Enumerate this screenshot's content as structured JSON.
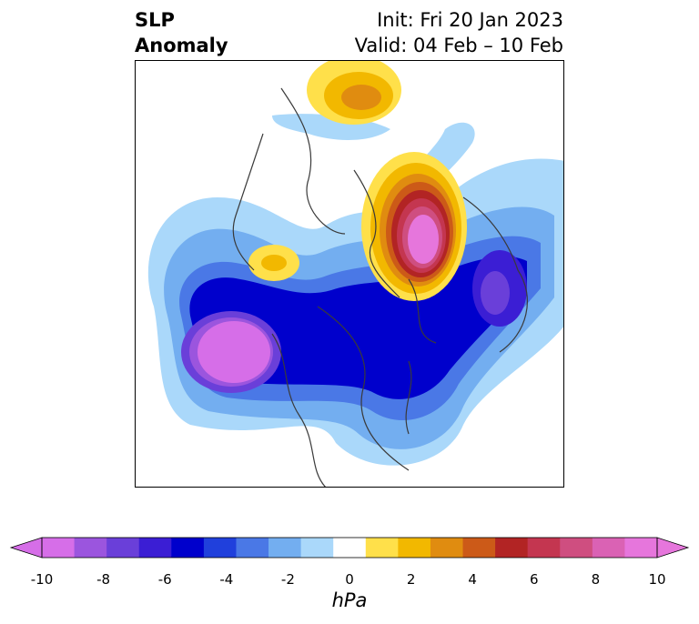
{
  "title": {
    "left_line1": "SLP",
    "left_line2": "Anomaly",
    "init": "Init: Fri 20 Jan 2023",
    "valid": "Valid: 04 Feb – 10 Feb"
  },
  "colorbar": {
    "unit": "hPa",
    "ticks": [
      "-10",
      "-8",
      "-6",
      "-4",
      "-2",
      "0",
      "2",
      "4",
      "6",
      "8",
      "10"
    ],
    "colors": [
      "#d66ee8",
      "#9b55de",
      "#6a3fd9",
      "#3b1ed4",
      "#0000cc",
      "#2040dc",
      "#4a78e6",
      "#73aef0",
      "#aad8fa",
      "#ffffff",
      "#ffe04a",
      "#f2b800",
      "#e08c10",
      "#cc5a18",
      "#b22424",
      "#c43650",
      "#cf4e80",
      "#da62b4",
      "#e676dc"
    ]
  }
}
